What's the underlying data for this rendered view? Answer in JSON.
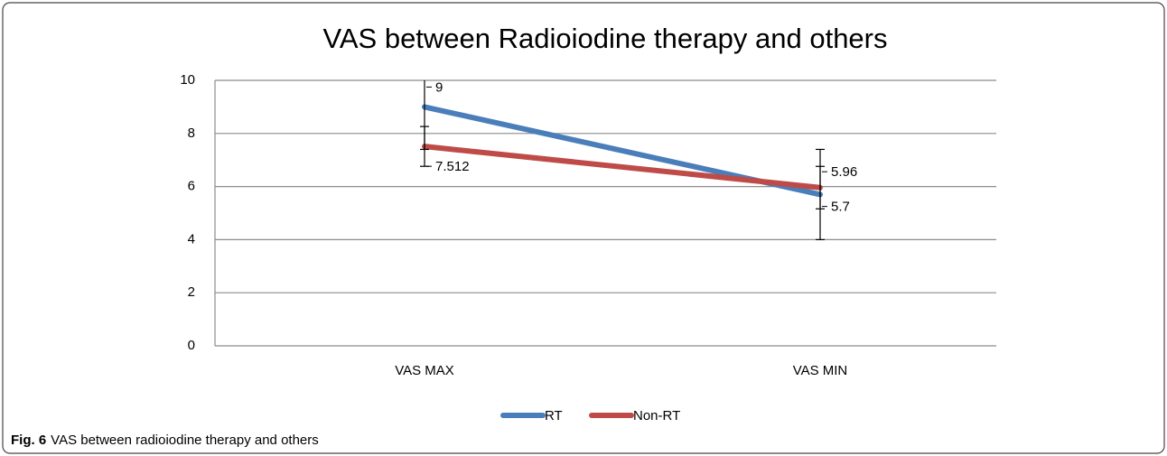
{
  "chart_data": {
    "type": "line",
    "title": "VAS between Radioiodine therapy and others",
    "categories": [
      "VAS MAX",
      "VAS MIN"
    ],
    "series": [
      {
        "name": "RT",
        "color": "#4a7ebb",
        "values": [
          9,
          5.7
        ],
        "errors": [
          1.6,
          1.7
        ]
      },
      {
        "name": "Non-RT",
        "color": "#be4b48",
        "values": [
          7.512,
          5.96
        ],
        "errors": [
          0.75,
          0.8
        ]
      }
    ],
    "ylim": [
      0,
      10
    ],
    "yticks": [
      0,
      2,
      4,
      6,
      8,
      10
    ],
    "grid": true,
    "legend": "bottom"
  },
  "caption": {
    "label": "Fig. 6",
    "text": "VAS between radioiodine therapy and others"
  }
}
